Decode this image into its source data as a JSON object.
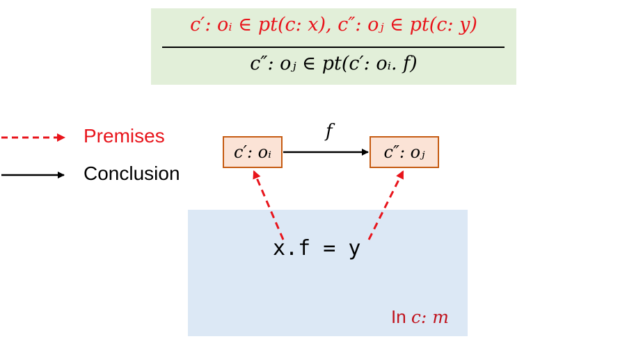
{
  "rule": {
    "premise": "c′: oᵢ ∈ pt(c: x), c″: oⱼ ∈ pt(c: y)",
    "conclusion": "c″: oⱼ ∈ pt(c′: oᵢ. f)"
  },
  "legend": {
    "premises": "Premises",
    "conclusion": "Conclusion"
  },
  "nodes": {
    "left": "c′: oᵢ",
    "right": "c″: oⱼ"
  },
  "edge_label": "f",
  "code": "x.f = y",
  "context": {
    "prefix": "In",
    "method": "c: m"
  },
  "colors": {
    "premise_red": "#e8141b",
    "rule_box": "#e2efd9",
    "code_region": "#dce8f5",
    "node_fill": "#fbe3d6",
    "node_border": "#c55a11"
  }
}
